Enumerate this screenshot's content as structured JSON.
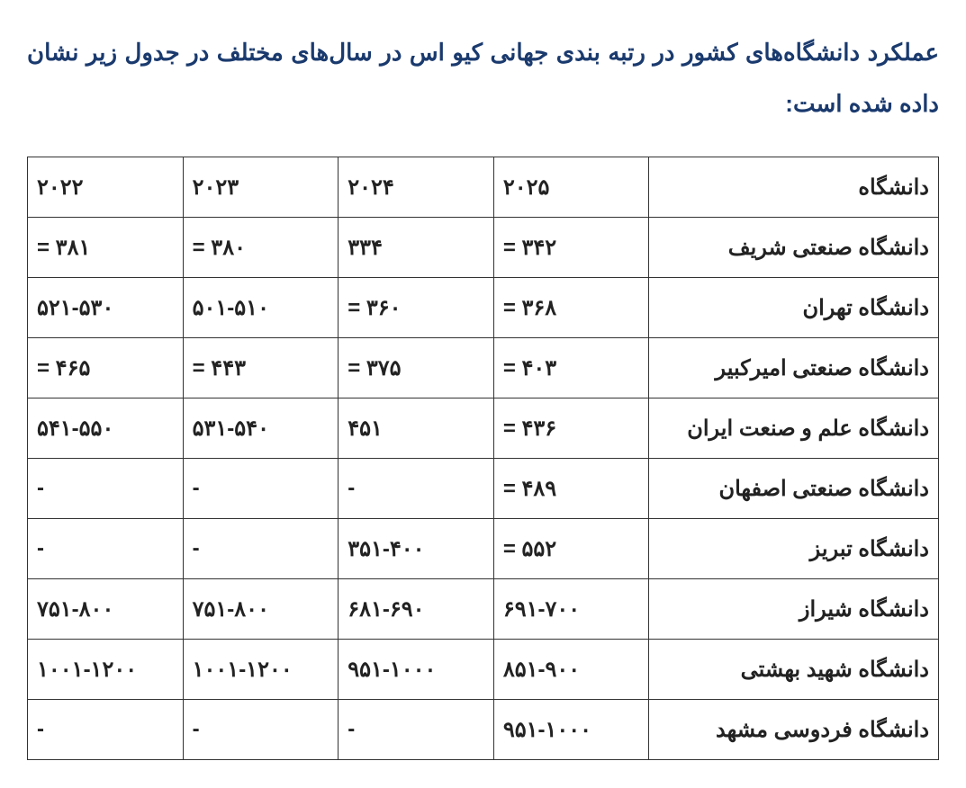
{
  "title": "عملکرد دانشگاه‌های کشور در رتبه بندی جهانی کیو اس در سال‌های مختلف در جدول زیر نشان داده شده است:",
  "table": {
    "columns": [
      "دانشگاه",
      "۲۰۲۵",
      "۲۰۲۴",
      "۲۰۲۳",
      "۲۰۲۲"
    ],
    "rows": [
      [
        "دانشگاه صنعتی شریف",
        "= ۳۴۲",
        "۳۳۴",
        "= ۳۸۰",
        "= ۳۸۱"
      ],
      [
        "دانشگاه تهران",
        "= ۳۶۸",
        "= ۳۶۰",
        "۵۰۱-۵۱۰",
        "۵۲۱-۵۳۰"
      ],
      [
        "دانشگاه صنعتی امیرکبیر",
        "= ۴۰۳",
        "= ۳۷۵",
        "= ۴۴۳",
        "= ۴۶۵"
      ],
      [
        "دانشگاه علم و صنعت ایران",
        "= ۴۳۶",
        "۴۵۱",
        "۵۳۱-۵۴۰",
        "۵۴۱-۵۵۰"
      ],
      [
        "دانشگاه صنعتی اصفهان",
        "= ۴۸۹",
        "-",
        "-",
        "-"
      ],
      [
        "دانشگاه تبریز",
        "= ۵۵۲",
        "۳۵۱-۴۰۰",
        "-",
        "-"
      ],
      [
        "دانشگاه شیراز",
        "۶۹۱-۷۰۰",
        "۶۸۱-۶۹۰",
        "۷۵۱-۸۰۰",
        "۷۵۱-۸۰۰"
      ],
      [
        "دانشگاه شهید بهشتی",
        "۸۵۱-۹۰۰",
        "۹۵۱-۱۰۰۰",
        "۱۰۰۱-۱۲۰۰",
        "۱۰۰۱-۱۲۰۰"
      ],
      [
        "دانشگاه فردوسی مشهد",
        "۹۵۱-۱۰۰۰",
        "-",
        "-",
        "-"
      ]
    ]
  }
}
